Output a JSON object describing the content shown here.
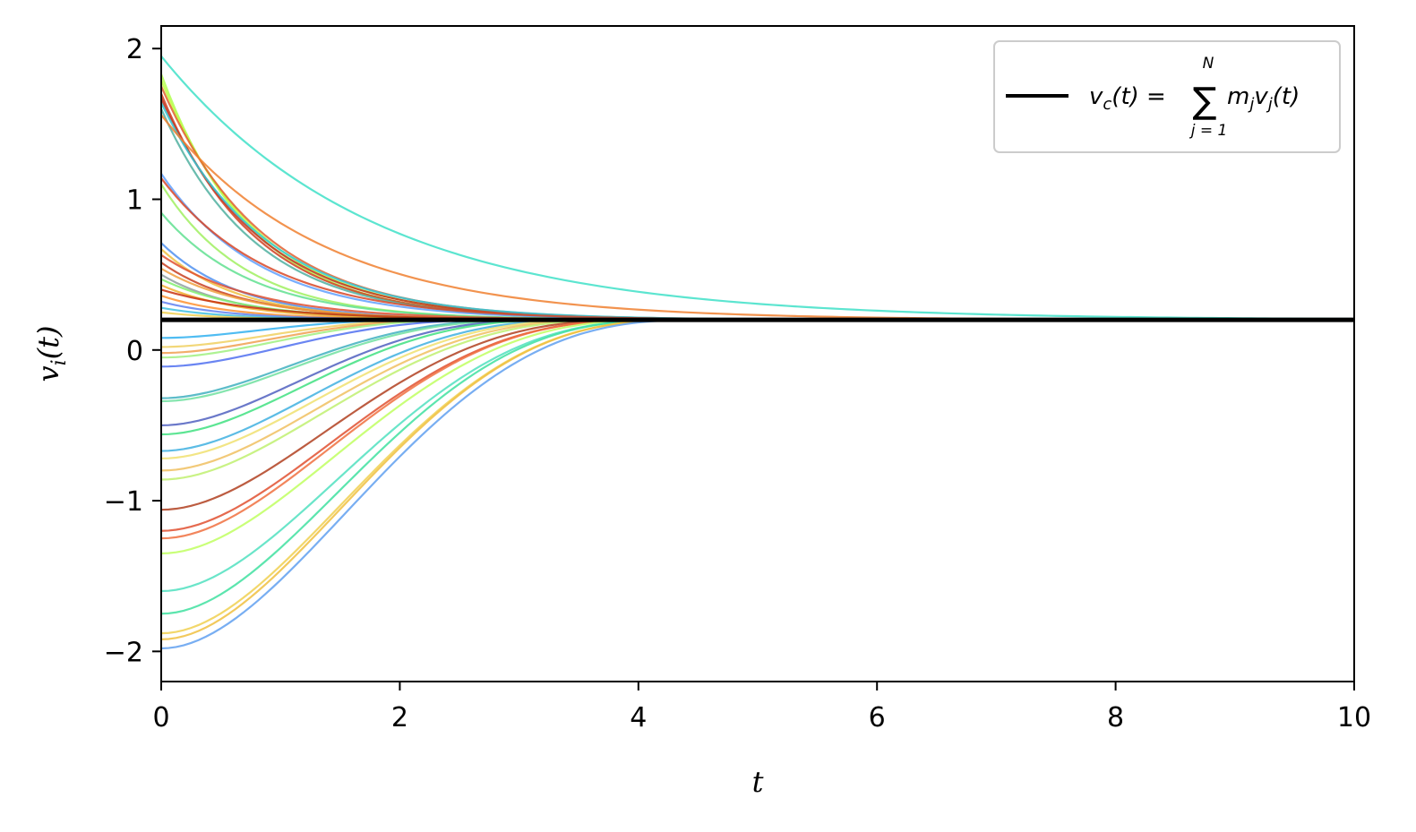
{
  "chart_data": {
    "type": "line",
    "title": "",
    "xlabel": "t",
    "ylabel_parts": {
      "base": "v",
      "sub": "i",
      "arg": "(t)"
    },
    "xlim": [
      0,
      10
    ],
    "ylim": [
      -2.2,
      2.15
    ],
    "xticks": [
      {
        "value": 0,
        "label": "0"
      },
      {
        "value": 2,
        "label": "2"
      },
      {
        "value": 4,
        "label": "4"
      },
      {
        "value": 6,
        "label": "6"
      },
      {
        "value": 8,
        "label": "8"
      },
      {
        "value": 10,
        "label": "10"
      }
    ],
    "yticks": [
      {
        "value": 2,
        "label": "2"
      },
      {
        "value": 1,
        "label": "1"
      },
      {
        "value": 0,
        "label": "0"
      },
      {
        "value": -1,
        "label": "−1"
      },
      {
        "value": -2,
        "label": "−2"
      }
    ],
    "grid": false,
    "legend": {
      "position": "top-right",
      "entry": {
        "color": "#000000",
        "lhs": "v",
        "lhs_sub": "c",
        "lhs_arg": "(t) =",
        "sum": "∑",
        "sum_upper": "N",
        "sum_lower": "j = 1",
        "term": "m",
        "term_sub": "j",
        "term2": "v",
        "term2_sub": "j",
        "term2_arg": "(t)"
      }
    },
    "center_velocity": 0.2,
    "series": [
      {
        "v0": 1.95,
        "t_conv": 7.5,
        "color": "#40e0c8"
      },
      {
        "v0": 1.83,
        "t_conv": 3.2,
        "color": "#b0ff50"
      },
      {
        "v0": 1.79,
        "t_conv": 3.4,
        "color": "#c0ff40"
      },
      {
        "v0": 1.75,
        "t_conv": 3.6,
        "color": "#e06030"
      },
      {
        "v0": 1.7,
        "t_conv": 3.3,
        "color": "#d04020"
      },
      {
        "v0": 1.67,
        "t_conv": 3.5,
        "color": "#c03020"
      },
      {
        "v0": 1.64,
        "t_conv": 3.7,
        "color": "#30c8d8"
      },
      {
        "v0": 1.6,
        "t_conv": 3.3,
        "color": "#50b0a0"
      },
      {
        "v0": 1.56,
        "t_conv": 5.6,
        "color": "#f08030"
      },
      {
        "v0": 1.17,
        "t_conv": 3.5,
        "color": "#60a0ff"
      },
      {
        "v0": 1.14,
        "t_conv": 3.8,
        "color": "#d84828"
      },
      {
        "v0": 1.1,
        "t_conv": 3.0,
        "color": "#a0f060"
      },
      {
        "v0": 0.91,
        "t_conv": 3.2,
        "color": "#60e090"
      },
      {
        "v0": 0.71,
        "t_conv": 2.8,
        "color": "#5090f0"
      },
      {
        "v0": 0.67,
        "t_conv": 2.7,
        "color": "#f0c040"
      },
      {
        "v0": 0.63,
        "t_conv": 3.4,
        "color": "#e05030"
      },
      {
        "v0": 0.58,
        "t_conv": 2.9,
        "color": "#c84020"
      },
      {
        "v0": 0.54,
        "t_conv": 3.1,
        "color": "#f0a040"
      },
      {
        "v0": 0.5,
        "t_conv": 2.7,
        "color": "#90a0a0"
      },
      {
        "v0": 0.47,
        "t_conv": 3.0,
        "color": "#80f070"
      },
      {
        "v0": 0.43,
        "t_conv": 2.8,
        "color": "#f0b030"
      },
      {
        "v0": 0.4,
        "t_conv": 3.6,
        "color": "#c83010"
      },
      {
        "v0": 0.36,
        "t_conv": 2.6,
        "color": "#ff9030"
      },
      {
        "v0": 0.32,
        "t_conv": 2.5,
        "color": "#6080f0"
      },
      {
        "v0": 0.28,
        "t_conv": 2.4,
        "color": "#40c0e0"
      },
      {
        "v0": 0.25,
        "t_conv": 2.3,
        "color": "#f0d050"
      },
      {
        "v0": 0.08,
        "t_conv": 2.4,
        "color": "#30b0f0"
      },
      {
        "v0": 0.02,
        "t_conv": 2.6,
        "color": "#f0d060"
      },
      {
        "v0": -0.02,
        "t_conv": 2.7,
        "color": "#f0a050"
      },
      {
        "v0": -0.05,
        "t_conv": 2.8,
        "color": "#a0f080"
      },
      {
        "v0": -0.11,
        "t_conv": 3.0,
        "color": "#5070f0"
      },
      {
        "v0": -0.32,
        "t_conv": 3.2,
        "color": "#40b0c0"
      },
      {
        "v0": -0.34,
        "t_conv": 3.3,
        "color": "#70e0a0"
      },
      {
        "v0": -0.5,
        "t_conv": 3.4,
        "color": "#5060c0"
      },
      {
        "v0": -0.56,
        "t_conv": 3.5,
        "color": "#40e080"
      },
      {
        "v0": -0.67,
        "t_conv": 3.7,
        "color": "#40b0e0"
      },
      {
        "v0": -0.72,
        "t_conv": 3.8,
        "color": "#f0e070"
      },
      {
        "v0": -0.8,
        "t_conv": 3.9,
        "color": "#f0c060"
      },
      {
        "v0": -0.86,
        "t_conv": 4.0,
        "color": "#c0f070"
      },
      {
        "v0": -1.06,
        "t_conv": 4.1,
        "color": "#b04020"
      },
      {
        "v0": -1.2,
        "t_conv": 4.2,
        "color": "#e05030"
      },
      {
        "v0": -1.25,
        "t_conv": 4.2,
        "color": "#f07040"
      },
      {
        "v0": -1.35,
        "t_conv": 4.3,
        "color": "#c0ff60"
      },
      {
        "v0": -1.6,
        "t_conv": 4.4,
        "color": "#50e0c0"
      },
      {
        "v0": -1.75,
        "t_conv": 4.4,
        "color": "#40e0a0"
      },
      {
        "v0": -1.88,
        "t_conv": 4.5,
        "color": "#f0d050"
      },
      {
        "v0": -1.92,
        "t_conv": 4.5,
        "color": "#f0c040"
      },
      {
        "v0": -1.98,
        "t_conv": 4.6,
        "color": "#60a0f0"
      }
    ]
  }
}
